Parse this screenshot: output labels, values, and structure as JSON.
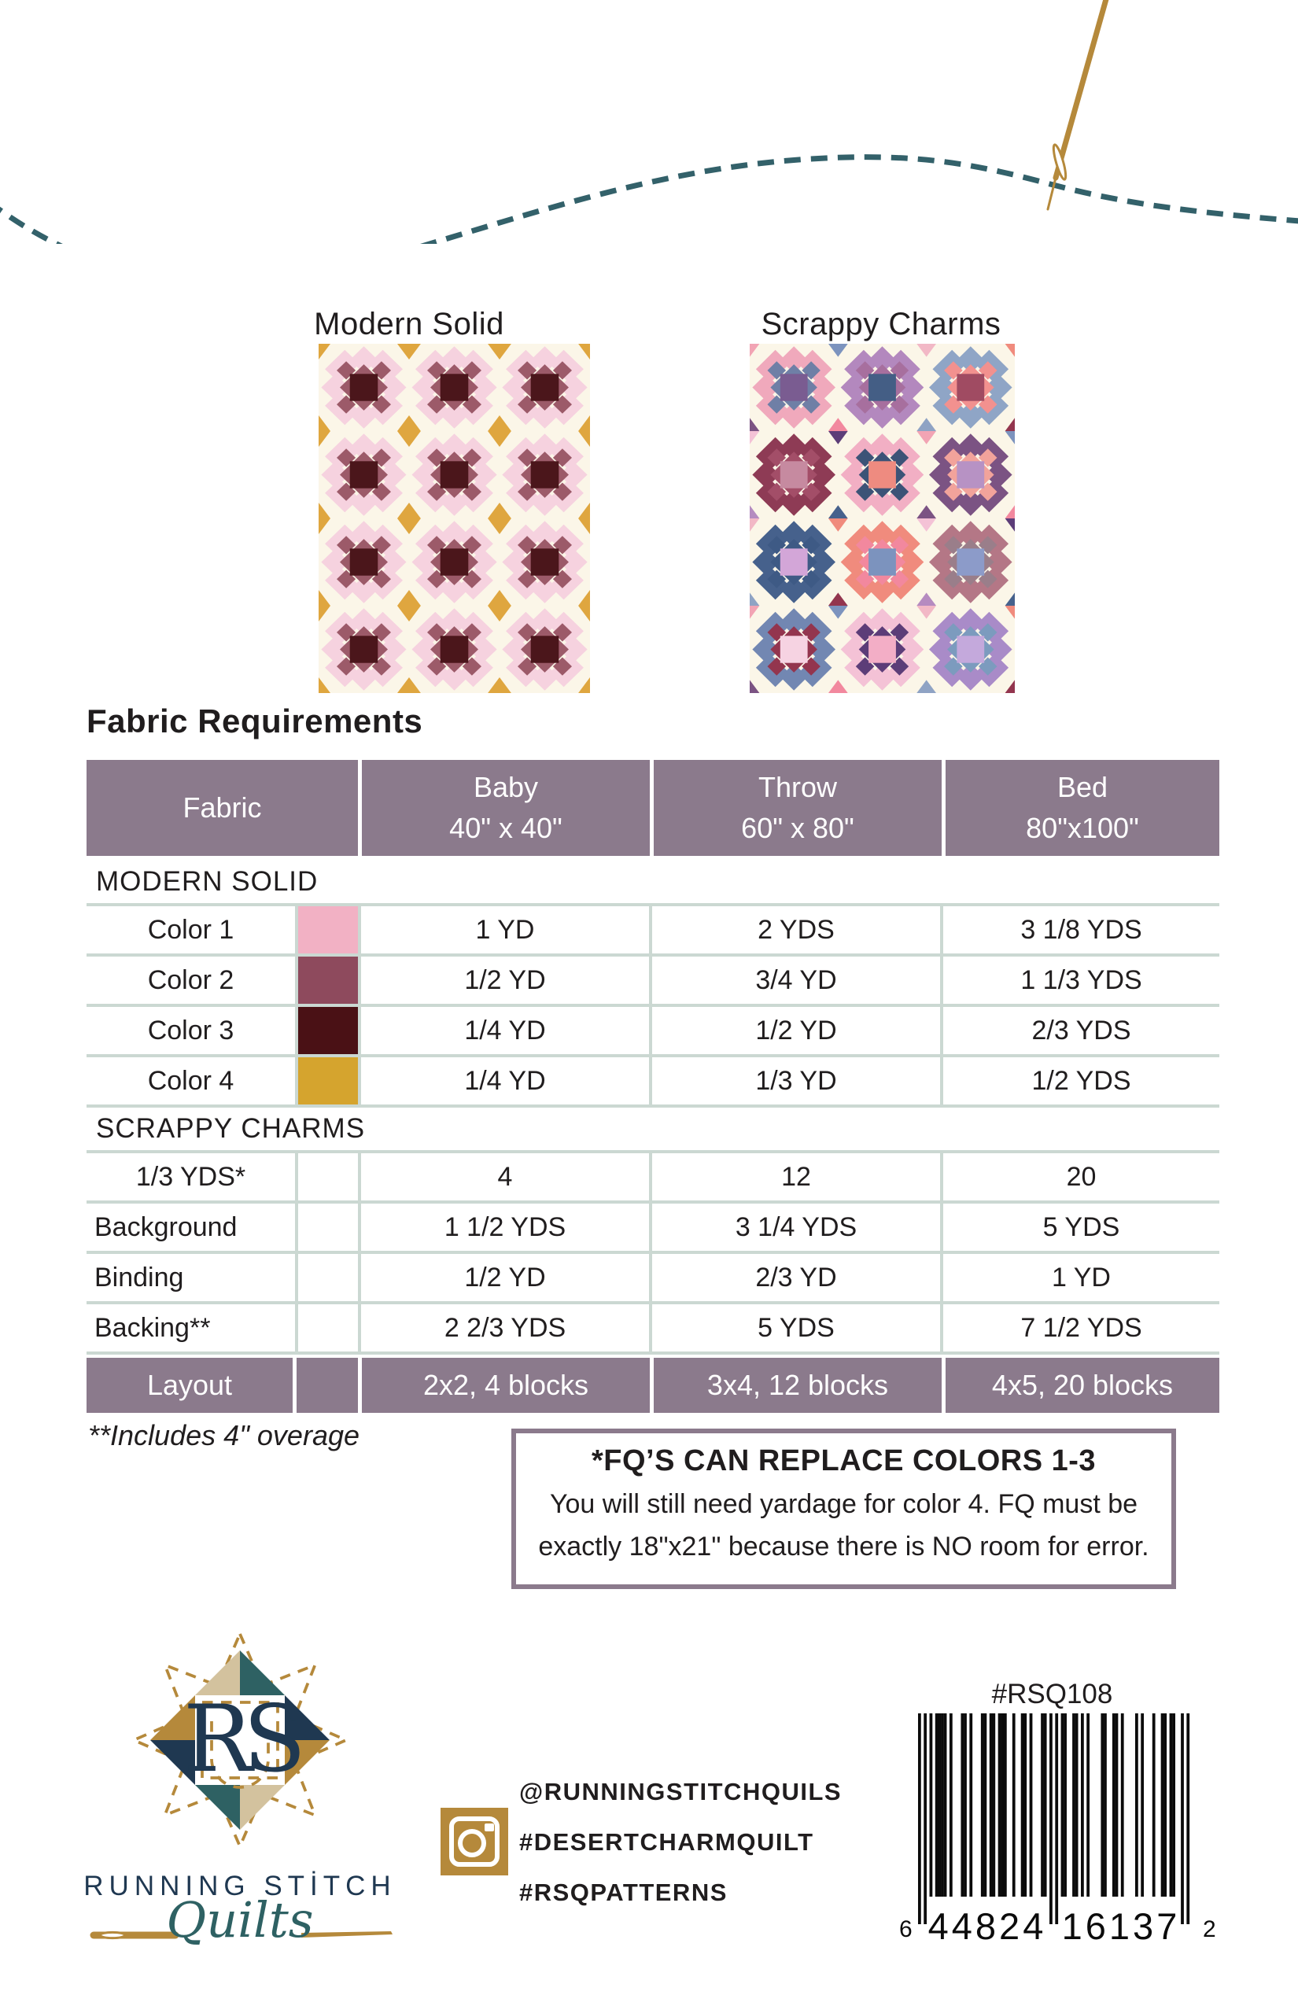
{
  "colors": {
    "ink": "#201d1e",
    "thread_teal": "#33616a",
    "gold": "#b5893b",
    "tan": "#d3c29e",
    "teal": "#2e6163",
    "navy": "#1f3851",
    "table_purple": "#8b7a8c",
    "table_line": "#cbd8d2"
  },
  "quilts": {
    "modern": {
      "label": "Modern Solid",
      "background": "#fbf6e8",
      "cols": 3,
      "rows": 4,
      "palette": {
        "r": "#f6d2df",
        "d": "#9c5a69",
        "c": "#4b161b"
      },
      "accent": "#dfa63f"
    },
    "scrappy": {
      "label": "Scrappy Charms",
      "background": "#fbf6e8",
      "cols": 3,
      "rows": 4,
      "blocks": [
        {
          "r": "#f0a9bc",
          "d": "#6f7fa6",
          "c": "#7a5c91"
        },
        {
          "r": "#b388be",
          "d": "#a76f9e",
          "c": "#445e85"
        },
        {
          "r": "#8fa5c6",
          "d": "#f2918f",
          "c": "#a04b62"
        },
        {
          "r": "#8e3b55",
          "d": "#a34e68",
          "c": "#c68aa0"
        },
        {
          "r": "#f2afc4",
          "d": "#3c5377",
          "c": "#ee8b80"
        },
        {
          "r": "#7b5383",
          "d": "#f2a39b",
          "c": "#b792c4"
        },
        {
          "r": "#46618c",
          "d": "#3e5a85",
          "c": "#d3a6d8"
        },
        {
          "r": "#f08b7d",
          "d": "#f2889e",
          "c": "#7c93be"
        },
        {
          "r": "#b47786",
          "d": "#9a7e8a",
          "c": "#8c9bc9"
        },
        {
          "r": "#7287b2",
          "d": "#93354e",
          "c": "#f6d3e2"
        },
        {
          "r": "#f4c2d6",
          "d": "#5c3d78",
          "c": "#f3aec6"
        },
        {
          "r": "#a98bc8",
          "d": "#7c9bbe",
          "c": "#c4a9dc"
        }
      ],
      "accent_pairs": [
        [
          "#8fa3c4",
          "#f2a4b4"
        ],
        [
          "#93354e",
          "#7c93be"
        ],
        [
          "#b58bc0",
          "#f2b8c6"
        ],
        [
          "#46618c",
          "#f08b7d"
        ],
        [
          "#7b5383",
          "#f4c2d6"
        ],
        [
          "#f2889e",
          "#5c3d78"
        ]
      ]
    }
  },
  "fabric_table": {
    "title": "Fabric Requirements",
    "header": {
      "fabric": "Fabric",
      "cols": [
        {
          "l1": "Baby",
          "l2": "40\" x 40\""
        },
        {
          "l1": "Throw",
          "l2": "60\" x 80\""
        },
        {
          "l1": "Bed",
          "l2": "80\"x100\""
        }
      ]
    },
    "sections": [
      {
        "label": "MODERN SOLID",
        "rows": [
          {
            "label": "Color 1",
            "swatch": "#f2b1c4",
            "align": "center",
            "values": [
              "1 YD",
              "2 YDS",
              "3 1/8 YDS"
            ]
          },
          {
            "label": "Color 2",
            "swatch": "#8e4a5d",
            "align": "center",
            "values": [
              "1/2 YD",
              "3/4 YD",
              "1 1/3 YDS"
            ]
          },
          {
            "label": "Color 3",
            "swatch": "#4a1115",
            "align": "center",
            "values": [
              "1/4 YD",
              "1/2 YD",
              "2/3 YDS"
            ]
          },
          {
            "label": "Color 4",
            "swatch": "#d5a42e",
            "align": "center",
            "values": [
              "1/4 YD",
              "1/3 YD",
              "1/2 YDS"
            ]
          }
        ]
      },
      {
        "label": "SCRAPPY CHARMS",
        "rows": [
          {
            "label": "1/3 YDS*",
            "swatch": null,
            "align": "center",
            "values": [
              "4",
              "12",
              "20"
            ]
          },
          {
            "label": "Background",
            "swatch": null,
            "align": "left",
            "values": [
              "1 1/2 YDS",
              "3 1/4 YDS",
              "5 YDS"
            ]
          },
          {
            "label": "Binding",
            "swatch": null,
            "align": "left",
            "values": [
              "1/2 YD",
              "2/3 YD",
              "1 YD"
            ]
          },
          {
            "label": "Backing**",
            "swatch": null,
            "align": "left",
            "values": [
              "2 2/3 YDS",
              "5 YDS",
              "7 1/2 YDS"
            ]
          }
        ]
      }
    ],
    "footer_row": {
      "label": "Layout",
      "values": [
        "2x2, 4 blocks",
        "3x4, 12 blocks",
        "4x5, 20 blocks"
      ]
    },
    "footnote": "**Includes 4\" overage"
  },
  "fq_note": {
    "title": "*FQ’S CAN REPLACE COLORS 1-3",
    "body": "You will still need yardage for color 4. FQ must be exactly 18\"x21\" because there is NO room for error."
  },
  "branding": {
    "monogram": "RS",
    "name": "RUNNING STİTCH",
    "script": "Quilts"
  },
  "social": {
    "handles": [
      "@RUNNINGSTITCHQUILS",
      "#DESERTCHARMQUILT",
      "#RSQPATTERNS"
    ]
  },
  "product": {
    "sku": "#RSQ108",
    "upc": "644824161372",
    "upc_display": [
      "6",
      "44824",
      "16137",
      "2"
    ]
  }
}
